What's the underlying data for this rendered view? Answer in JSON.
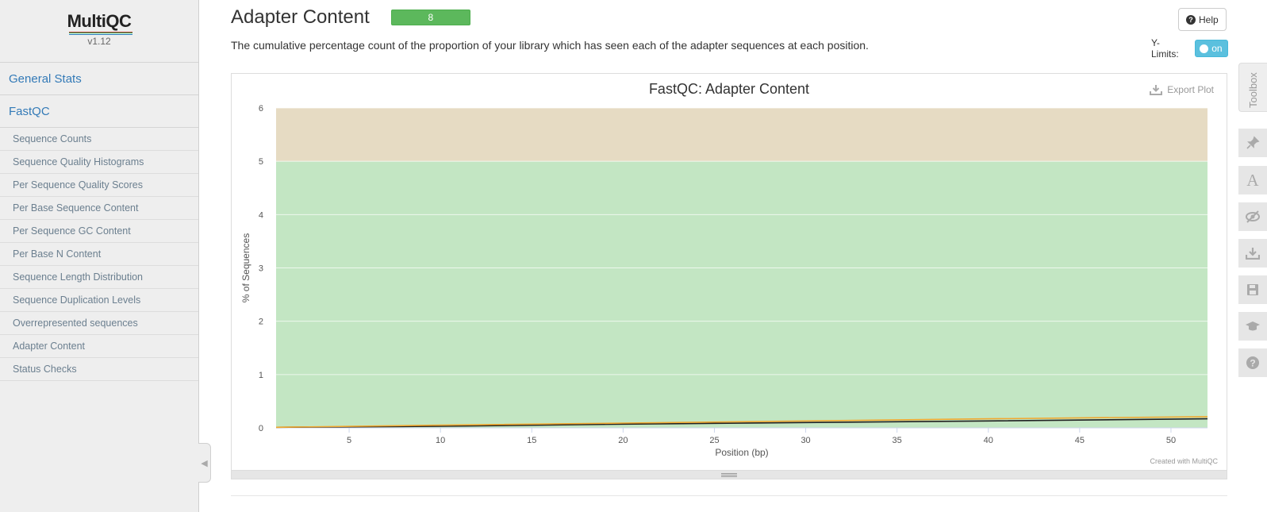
{
  "sidebar": {
    "logo": "MultiQC",
    "version": "v1.12",
    "sections": [
      {
        "label": "General Stats"
      },
      {
        "label": "FastQC"
      }
    ],
    "subitems": [
      {
        "label": "Sequence Counts"
      },
      {
        "label": "Sequence Quality Histograms"
      },
      {
        "label": "Per Sequence Quality Scores"
      },
      {
        "label": "Per Base Sequence Content"
      },
      {
        "label": "Per Sequence GC Content"
      },
      {
        "label": "Per Base N Content"
      },
      {
        "label": "Sequence Length Distribution"
      },
      {
        "label": "Sequence Duplication Levels"
      },
      {
        "label": "Overrepresented sequences"
      },
      {
        "label": "Adapter Content"
      },
      {
        "label": "Status Checks"
      }
    ]
  },
  "header": {
    "title": "Adapter Content",
    "badge_count": "8",
    "badge_color": "#5cb85c",
    "help_label": "Help",
    "description": "The cumulative percentage count of the proportion of your library which has seen each of the adapter sequences at each position.",
    "ylimits_label": "Y-Limits:",
    "ylimits_toggle": "on"
  },
  "plot": {
    "title": "FastQC: Adapter Content",
    "export_label": "Export Plot",
    "credit": "Created with MultiQC"
  },
  "toolbox": {
    "label": "Toolbox",
    "icons": [
      "pin-icon",
      "font-icon",
      "eye-slash-icon",
      "download-icon",
      "save-icon",
      "graduation-cap-icon",
      "question-icon"
    ]
  },
  "chart_data": {
    "type": "line",
    "title": "FastQC: Adapter Content",
    "xlabel": "Position (bp)",
    "ylabel": "% of Sequences",
    "xlim": [
      1,
      52
    ],
    "ylim": [
      0,
      6
    ],
    "x_ticks": [
      5,
      10,
      15,
      20,
      25,
      30,
      35,
      40,
      45,
      50
    ],
    "y_ticks": [
      0,
      1,
      2,
      3,
      4,
      5,
      6
    ],
    "bands": [
      {
        "from": 0,
        "to": 5,
        "color": "#c3e6c3"
      },
      {
        "from": 5,
        "to": 6,
        "color": "#e6dbc3"
      }
    ],
    "series": [
      {
        "color": "#222222",
        "x": [
          1,
          10,
          20,
          30,
          40,
          52
        ],
        "values": [
          0.01,
          0.03,
          0.07,
          0.1,
          0.13,
          0.17
        ]
      },
      {
        "color": "#f0a830",
        "x": [
          1,
          10,
          20,
          30,
          40,
          52
        ],
        "values": [
          0.01,
          0.05,
          0.09,
          0.13,
          0.17,
          0.21
        ]
      }
    ],
    "grid": true,
    "legend": "none"
  }
}
